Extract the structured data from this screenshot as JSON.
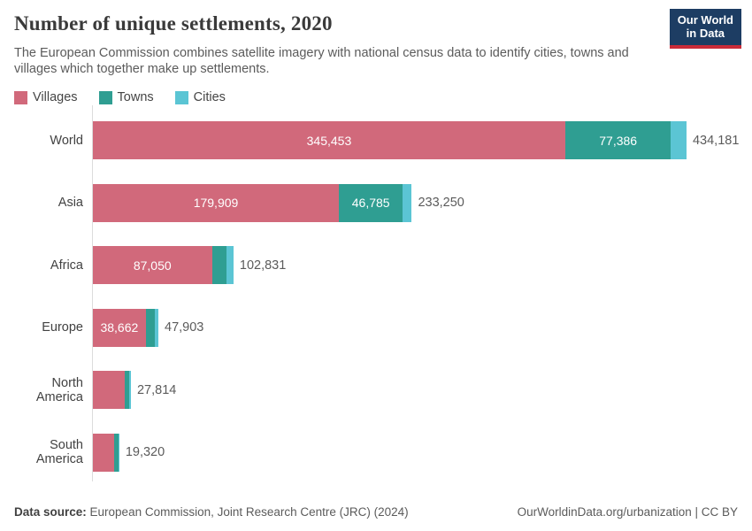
{
  "header": {
    "title": "Number of unique settlements, 2020",
    "subtitle": "The European Commission combines satellite imagery with national census data to identify cities, towns and villages which together make up settlements.",
    "logo_line1": "Our World",
    "logo_line2": "in Data",
    "logo_bg_color": "#1d3d63",
    "logo_stripe_color": "#ca2b39"
  },
  "legend": {
    "items": [
      {
        "label": "Villages",
        "color": "#d1697b"
      },
      {
        "label": "Towns",
        "color": "#2f9e92"
      },
      {
        "label": "Cities",
        "color": "#5bc5d4"
      }
    ]
  },
  "chart_data": {
    "type": "bar",
    "orientation": "horizontal",
    "stacked": true,
    "title": "Number of unique settlements, 2020",
    "legend_position": "top",
    "grid": false,
    "xlim": [
      0,
      434181
    ],
    "series_keys": [
      "Villages",
      "Towns",
      "Cities"
    ],
    "colors": {
      "Villages": "#d1697b",
      "Towns": "#2f9e92",
      "Cities": "#5bc5d4"
    },
    "rows": [
      {
        "label": "World",
        "segments": [
          {
            "name": "Villages",
            "value": 345453,
            "label": "345,453"
          },
          {
            "name": "Towns",
            "value": 77386,
            "label": "77,386"
          },
          {
            "name": "Cities",
            "value": 11342,
            "label": ""
          }
        ],
        "total": 434181,
        "total_label": "434,181"
      },
      {
        "label": "Asia",
        "segments": [
          {
            "name": "Villages",
            "value": 179909,
            "label": "179,909"
          },
          {
            "name": "Towns",
            "value": 46785,
            "label": "46,785"
          },
          {
            "name": "Cities",
            "value": 6556,
            "label": ""
          }
        ],
        "total": 233250,
        "total_label": "233,250"
      },
      {
        "label": "Africa",
        "segments": [
          {
            "name": "Villages",
            "value": 87050,
            "label": "87,050"
          },
          {
            "name": "Towns",
            "value": 10500,
            "label": ""
          },
          {
            "name": "Cities",
            "value": 5281,
            "label": ""
          }
        ],
        "total": 102831,
        "total_label": "102,831"
      },
      {
        "label": "Europe",
        "segments": [
          {
            "name": "Villages",
            "value": 38662,
            "label": "38,662"
          },
          {
            "name": "Towns",
            "value": 6700,
            "label": ""
          },
          {
            "name": "Cities",
            "value": 2541,
            "label": ""
          }
        ],
        "total": 47903,
        "total_label": "47,903"
      },
      {
        "label": "North America",
        "segments": [
          {
            "name": "Villages",
            "value": 23300,
            "label": ""
          },
          {
            "name": "Towns",
            "value": 3420,
            "label": ""
          },
          {
            "name": "Cities",
            "value": 1094,
            "label": ""
          }
        ],
        "total": 27814,
        "total_label": "27,814"
      },
      {
        "label": "South America",
        "segments": [
          {
            "name": "Villages",
            "value": 15700,
            "label": ""
          },
          {
            "name": "Towns",
            "value": 2900,
            "label": ""
          },
          {
            "name": "Cities",
            "value": 720,
            "label": ""
          }
        ],
        "total": 19320,
        "total_label": "19,320"
      }
    ]
  },
  "footer": {
    "datasource_bold": "Data source:",
    "datasource_rest": " European Commission, Joint Research Centre (JRC) (2024)",
    "right_text": "OurWorldinData.org/urbanization | CC BY"
  }
}
